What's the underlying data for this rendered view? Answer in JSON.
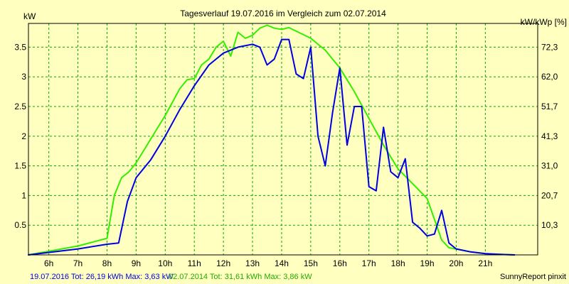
{
  "chart_data": {
    "type": "line",
    "title": "Tagesverlauf 19.07.2016 im Vergleich zum 02.07.2014",
    "ylabel_left": "kW",
    "ylabel_right": "kW/kWp [%]",
    "x_ticks": [
      "6h",
      "7h",
      "8h",
      "9h",
      "10h",
      "11h",
      "12h",
      "13h",
      "14h",
      "15h",
      "16h",
      "17h",
      "18h",
      "19h",
      "20h",
      "21h"
    ],
    "y_ticks_left": [
      "0.5",
      "1",
      "1.5",
      "2",
      "2.5",
      "3",
      "3.5"
    ],
    "y_ticks_right": [
      "10,3",
      "20,7",
      "31,0",
      "41,3",
      "51,7",
      "62,0",
      "72,3"
    ],
    "xlim": [
      5.3,
      22.8
    ],
    "ylim": [
      0,
      3.9
    ],
    "grid": true,
    "series": [
      {
        "name": "19.07.2016",
        "color": "#0000e0",
        "x": [
          5.3,
          7.0,
          8.0,
          8.4,
          8.7,
          9.0,
          9.5,
          10.0,
          10.5,
          11.0,
          11.5,
          12.0,
          12.5,
          13.0,
          13.25,
          13.5,
          13.75,
          14.0,
          14.25,
          14.5,
          14.75,
          15.0,
          15.25,
          15.5,
          15.75,
          16.0,
          16.25,
          16.5,
          16.75,
          17.0,
          17.25,
          17.5,
          17.75,
          18.0,
          18.25,
          18.5,
          18.75,
          19.0,
          19.25,
          19.5,
          19.75,
          20.0,
          20.5,
          21.0,
          21.5,
          22.0
        ],
        "y": [
          0,
          0.1,
          0.18,
          0.2,
          0.9,
          1.3,
          1.6,
          2.0,
          2.45,
          2.85,
          3.2,
          3.4,
          3.5,
          3.55,
          3.5,
          3.2,
          3.3,
          3.63,
          3.63,
          3.05,
          2.97,
          3.5,
          2.0,
          1.5,
          2.4,
          3.15,
          1.85,
          2.5,
          2.5,
          1.15,
          1.08,
          2.15,
          1.4,
          1.3,
          1.62,
          0.55,
          0.45,
          0.32,
          0.35,
          0.75,
          0.2,
          0.1,
          0.05,
          0.02,
          0.01,
          0
        ],
        "tot": "26,19",
        "max": "3,63"
      },
      {
        "name": "02.07.2014",
        "color": "#33ee00",
        "x": [
          5.3,
          7.0,
          8.0,
          8.25,
          8.5,
          8.75,
          9.0,
          9.5,
          10.0,
          10.5,
          10.75,
          11.0,
          11.25,
          11.5,
          11.75,
          12.0,
          12.25,
          12.5,
          12.75,
          13.0,
          13.25,
          13.5,
          13.75,
          14.0,
          14.25,
          14.5,
          15.0,
          15.5,
          16.0,
          16.5,
          17.0,
          17.5,
          18.0,
          18.5,
          19.0,
          19.25,
          19.5,
          19.75,
          20.0,
          20.5,
          21.0,
          21.5,
          22.0
        ],
        "y": [
          0,
          0.15,
          0.28,
          1.0,
          1.3,
          1.4,
          1.55,
          1.95,
          2.35,
          2.8,
          2.95,
          2.97,
          3.2,
          3.3,
          3.5,
          3.6,
          3.35,
          3.75,
          3.65,
          3.7,
          3.82,
          3.87,
          3.82,
          3.8,
          3.83,
          3.77,
          3.65,
          3.45,
          3.15,
          2.75,
          2.3,
          1.85,
          1.45,
          1.2,
          0.95,
          0.6,
          0.25,
          0.12,
          0.1,
          0.05,
          0.02,
          0.01,
          0
        ],
        "tot": "31,61",
        "max": "3,86"
      }
    ],
    "footer": {
      "s1": "19.07.2016 Tot: 26,19 kWh Max: 3,63 kW",
      "s2": "02.07.2014 Tot: 31,61 kWh Max: 3,86 kW",
      "credit": "SunnyReport pinxit"
    }
  }
}
